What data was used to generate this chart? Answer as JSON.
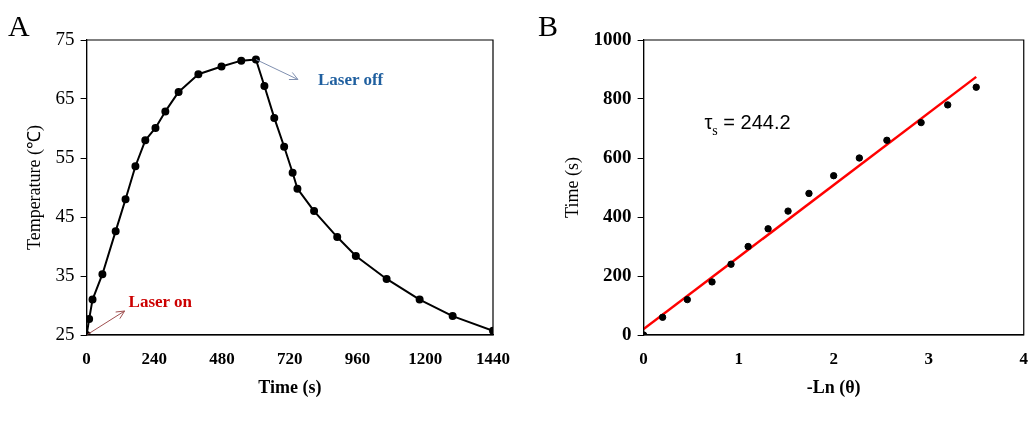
{
  "chart_data": [
    {
      "type": "line",
      "title": "A",
      "xlabel": "Time (s)",
      "ylabel": "Temperature (℃)",
      "color": "#000000",
      "marker": "circle",
      "grid": false,
      "legend": false,
      "x": [
        0,
        9,
        21,
        56,
        103,
        138,
        173,
        208,
        244,
        279,
        326,
        396,
        478,
        548,
        600,
        630,
        665,
        700,
        730,
        747,
        806,
        888,
        954,
        1063,
        1180,
        1297,
        1440
      ],
      "values": [
        25,
        27.7,
        31,
        35.3,
        42.6,
        48,
        53.6,
        58,
        60.1,
        62.9,
        66.2,
        69.2,
        70.5,
        71.5,
        71.7,
        67.2,
        61.8,
        56.9,
        52.5,
        49.8,
        46,
        41.6,
        38.4,
        34.5,
        31,
        28.2,
        25.7
      ],
      "xlim": [
        0,
        1440
      ],
      "xticks": [
        0,
        240,
        480,
        720,
        960,
        1200,
        1440
      ],
      "ylim": [
        25,
        75
      ],
      "yticks": [
        25,
        35,
        45,
        55,
        65,
        75
      ],
      "annotations": [
        {
          "text": "Laser on",
          "x": 0,
          "y": 25
        },
        {
          "text": "Laser off",
          "x": 600,
          "y": 71.7
        }
      ]
    },
    {
      "type": "scatter",
      "title": "B",
      "xlabel": "-Ln (θ)",
      "ylabel": "Time (s)",
      "grid": false,
      "legend": false,
      "series": [
        {
          "marker": "circle",
          "color": "#000000",
          "x": [
            0,
            0.2,
            0.46,
            0.72,
            0.92,
            1.1,
            1.31,
            1.52,
            1.74,
            2.0,
            2.27,
            2.56,
            2.92,
            3.2,
            3.5
          ],
          "values": [
            0,
            60,
            120,
            180,
            240,
            300,
            360,
            420,
            480,
            540,
            600,
            660,
            720,
            780,
            840
          ]
        },
        {
          "type": "line",
          "marker": "none",
          "color": "#ff0000",
          "x": [
            0,
            3.5
          ],
          "values": [
            20,
            875
          ]
        }
      ],
      "xlim": [
        0,
        4
      ],
      "xticks": [
        0,
        1,
        2,
        3,
        4
      ],
      "ylim": [
        0,
        1000
      ],
      "yticks": [
        0,
        200,
        400,
        600,
        800,
        1000
      ],
      "annotations": [
        "τ$_{s}$ = 244.2"
      ]
    }
  ]
}
